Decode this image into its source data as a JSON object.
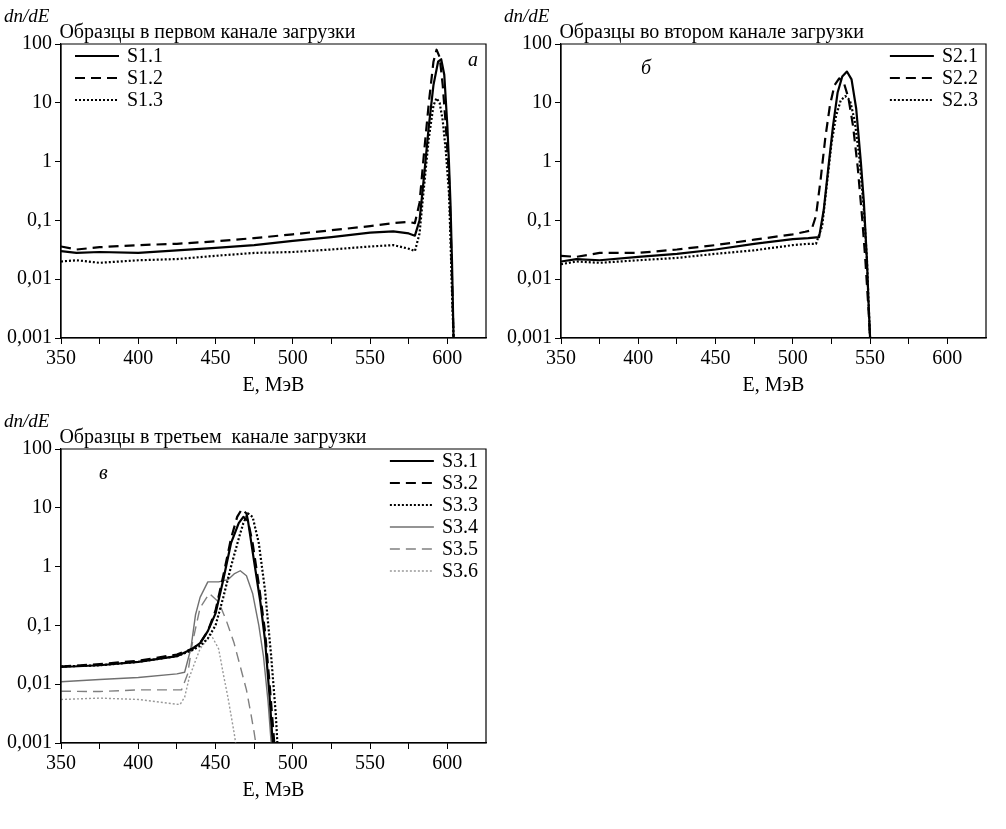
{
  "chart_data": [
    {
      "type": "line",
      "title": "Образцы в первом канале загрузки",
      "xlabel": "E, МэВ",
      "ylabel": "dn/dE",
      "annotations": [
        "а"
      ],
      "log": "y",
      "grid": false,
      "legend": "top left",
      "marker": "none",
      "xlim": [
        350,
        625
      ],
      "xticks": [
        350,
        {
          "value": 375,
          "label": null
        },
        400,
        {
          "value": 425,
          "label": null
        },
        450,
        {
          "value": 475,
          "label": null
        },
        500,
        {
          "value": 525,
          "label": null
        },
        550,
        {
          "value": 575,
          "label": null
        },
        600
      ],
      "ylim": [
        0.001,
        100
      ],
      "yticks": [
        {
          "value": 0.001,
          "label": "0,001"
        },
        {
          "value": 0.01,
          "label": "0,01"
        },
        {
          "value": 0.1,
          "label": "0,1"
        },
        1,
        10,
        100
      ],
      "series": [
        {
          "name": "S1.1",
          "color": "#000000",
          "line_style": "solid",
          "x": [
            350,
            360,
            375,
            400,
            425,
            450,
            475,
            500,
            525,
            550,
            565,
            575,
            579,
            582,
            585,
            588,
            591,
            594,
            596,
            598,
            600,
            601,
            602,
            603,
            604
          ],
          "values": [
            0.03,
            0.028,
            0.029,
            0.028,
            0.031,
            0.034,
            0.038,
            0.045,
            0.052,
            0.062,
            0.065,
            0.06,
            0.055,
            0.1,
            0.6,
            4,
            20,
            50,
            55,
            30,
            4,
            1,
            0.2,
            0.02,
            0.001
          ]
        },
        {
          "name": "S1.2",
          "color": "#000000",
          "line_style": "dashed",
          "x": [
            350,
            360,
            375,
            400,
            425,
            450,
            475,
            500,
            525,
            550,
            565,
            575,
            579,
            582,
            585,
            588,
            591,
            593,
            595,
            597,
            599,
            601,
            602,
            603,
            604
          ],
          "values": [
            0.036,
            0.032,
            0.035,
            0.038,
            0.04,
            0.044,
            0.05,
            0.058,
            0.068,
            0.08,
            0.09,
            0.094,
            0.09,
            0.2,
            1.5,
            10,
            50,
            80,
            60,
            20,
            4,
            0.6,
            0.1,
            0.01,
            0.001
          ]
        },
        {
          "name": "S1.3",
          "color": "#000000",
          "line_style": "dotted",
          "x": [
            350,
            360,
            375,
            400,
            425,
            450,
            475,
            500,
            525,
            550,
            565,
            575,
            579,
            582,
            585,
            588,
            591,
            593,
            595,
            597,
            599,
            601,
            602,
            603,
            604
          ],
          "values": [
            0.02,
            0.021,
            0.019,
            0.021,
            0.022,
            0.025,
            0.028,
            0.029,
            0.032,
            0.036,
            0.038,
            0.033,
            0.03,
            0.06,
            0.4,
            2.5,
            9,
            12,
            10,
            5,
            1.5,
            0.3,
            0.05,
            0.006,
            0.001
          ]
        }
      ]
    },
    {
      "type": "line",
      "title": "Образцы во втором канале загрузки",
      "xlabel": "E, МэВ",
      "ylabel": "dn/dE",
      "annotations": [
        "б"
      ],
      "log": "y",
      "grid": false,
      "legend": "top right",
      "marker": "none",
      "xlim": [
        350,
        625
      ],
      "xticks": [
        350,
        {
          "value": 375,
          "label": null
        },
        400,
        {
          "value": 425,
          "label": null
        },
        450,
        {
          "value": 475,
          "label": null
        },
        500,
        {
          "value": 525,
          "label": null
        },
        550,
        {
          "value": 575,
          "label": null
        },
        600
      ],
      "ylim": [
        0.001,
        100
      ],
      "yticks": [
        {
          "value": 0.001,
          "label": "0,001"
        },
        {
          "value": 0.01,
          "label": "0,01"
        },
        {
          "value": 0.1,
          "label": "0,1"
        },
        1,
        10,
        100
      ],
      "series": [
        {
          "name": "S2.1",
          "color": "#000000",
          "line_style": "solid",
          "x": [
            350,
            360,
            375,
            400,
            425,
            450,
            475,
            500,
            510,
            517,
            520,
            523,
            526,
            529,
            532,
            535,
            538,
            541,
            544,
            546,
            548,
            549,
            550
          ],
          "values": [
            0.02,
            0.022,
            0.021,
            0.024,
            0.027,
            0.032,
            0.04,
            0.048,
            0.05,
            0.052,
            0.15,
            0.8,
            4,
            15,
            28,
            34,
            25,
            8,
            1,
            0.2,
            0.02,
            0.004,
            0.001
          ]
        },
        {
          "name": "S2.2",
          "color": "#000000",
          "line_style": "dashed",
          "x": [
            350,
            360,
            375,
            400,
            425,
            450,
            475,
            500,
            508,
            512,
            515,
            518,
            521,
            524,
            527,
            530,
            533,
            536,
            539,
            542,
            545,
            547,
            549,
            550
          ],
          "values": [
            0.025,
            0.024,
            0.028,
            0.028,
            0.032,
            0.038,
            0.047,
            0.058,
            0.064,
            0.068,
            0.12,
            0.5,
            2.5,
            9,
            20,
            26,
            22,
            12,
            4,
            0.8,
            0.1,
            0.02,
            0.003,
            0.001
          ]
        },
        {
          "name": "S2.3",
          "color": "#000000",
          "line_style": "dotted",
          "x": [
            350,
            360,
            375,
            400,
            425,
            450,
            475,
            500,
            510,
            515,
            519,
            522,
            525,
            528,
            531,
            534,
            537,
            540,
            543,
            546,
            548,
            549,
            550
          ],
          "values": [
            0.018,
            0.02,
            0.019,
            0.021,
            0.023,
            0.027,
            0.031,
            0.038,
            0.04,
            0.04,
            0.08,
            0.4,
            2,
            6,
            11,
            13,
            11,
            5,
            1.2,
            0.15,
            0.02,
            0.004,
            0.001
          ]
        }
      ]
    },
    {
      "type": "line",
      "title": "Образцы в третьем  канале загрузки",
      "xlabel": "E, МэВ",
      "ylabel": "dn/dE",
      "annotations": [
        "в"
      ],
      "log": "y",
      "grid": false,
      "legend": "top right",
      "marker": "none",
      "xlim": [
        350,
        625
      ],
      "xticks": [
        350,
        {
          "value": 375,
          "label": null
        },
        400,
        {
          "value": 425,
          "label": null
        },
        450,
        {
          "value": 475,
          "label": null
        },
        500,
        {
          "value": 525,
          "label": null
        },
        550,
        {
          "value": 575,
          "label": null
        },
        600
      ],
      "ylim": [
        0.001,
        100
      ],
      "yticks": [
        {
          "value": 0.001,
          "label": "0,001"
        },
        {
          "value": 0.01,
          "label": "0,01"
        },
        {
          "value": 0.1,
          "label": "0,1"
        },
        1,
        10,
        100
      ],
      "series": [
        {
          "name": "S3.1",
          "color": "#000000",
          "line_style": "solid",
          "x": [
            350,
            375,
            400,
            425,
            435,
            440,
            445,
            450,
            455,
            460,
            465,
            468,
            471,
            475,
            479,
            482,
            485,
            487
          ],
          "values": [
            0.0196,
            0.021,
            0.024,
            0.03,
            0.04,
            0.05,
            0.08,
            0.16,
            0.6,
            2.5,
            5.5,
            7,
            6,
            1.2,
            0.25,
            0.057,
            0.006,
            0.001
          ]
        },
        {
          "name": "S3.2",
          "color": "#000000",
          "line_style": "dashed",
          "x": [
            350,
            375,
            400,
            425,
            435,
            440,
            445,
            450,
            455,
            460,
            464,
            467,
            470,
            474,
            478,
            482,
            485,
            488
          ],
          "values": [
            0.02,
            0.022,
            0.025,
            0.032,
            0.04,
            0.05,
            0.08,
            0.18,
            0.7,
            3,
            7,
            9.5,
            8,
            2.5,
            0.5,
            0.08,
            0.01,
            0.001
          ]
        },
        {
          "name": "S3.3",
          "color": "#000000",
          "line_style": "dotted",
          "x": [
            350,
            375,
            400,
            425,
            435,
            440,
            445,
            450,
            455,
            460,
            465,
            468,
            471,
            474,
            478,
            482,
            486,
            489,
            490
          ],
          "values": [
            0.02,
            0.021,
            0.024,
            0.03,
            0.038,
            0.045,
            0.06,
            0.1,
            0.3,
            1,
            3,
            5.5,
            8,
            7,
            2.5,
            0.4,
            0.03,
            0.003,
            0.001
          ]
        },
        {
          "name": "S3.4",
          "color": "#707070",
          "line_style": "solid",
          "x": [
            350,
            375,
            400,
            425,
            430,
            434,
            437,
            440,
            445,
            452,
            458,
            462,
            466,
            470,
            474,
            478,
            481,
            484,
            486
          ],
          "values": [
            0.011,
            0.012,
            0.013,
            0.015,
            0.016,
            0.04,
            0.15,
            0.3,
            0.55,
            0.55,
            0.6,
            0.75,
            0.85,
            0.7,
            0.35,
            0.1,
            0.03,
            0.005,
            0.001
          ]
        },
        {
          "name": "S3.5",
          "color": "#808080",
          "line_style": "dashed",
          "x": [
            350,
            375,
            400,
            428,
            432,
            435,
            440,
            446,
            452,
            457,
            462,
            466,
            470,
            473,
            475,
            476
          ],
          "values": [
            0.0076,
            0.0075,
            0.008,
            0.008,
            0.015,
            0.05,
            0.2,
            0.35,
            0.25,
            0.12,
            0.05,
            0.02,
            0.008,
            0.003,
            0.0015,
            0.001
          ]
        },
        {
          "name": "S3.6",
          "color": "#999999",
          "line_style": "dotted",
          "x": [
            350,
            375,
            400,
            427,
            430,
            433,
            437,
            440,
            447,
            452,
            455,
            458,
            460,
            462,
            463
          ],
          "values": [
            0.0055,
            0.0058,
            0.0055,
            0.0045,
            0.006,
            0.013,
            0.025,
            0.04,
            0.07,
            0.04,
            0.015,
            0.006,
            0.003,
            0.0015,
            0.001
          ]
        }
      ]
    }
  ]
}
